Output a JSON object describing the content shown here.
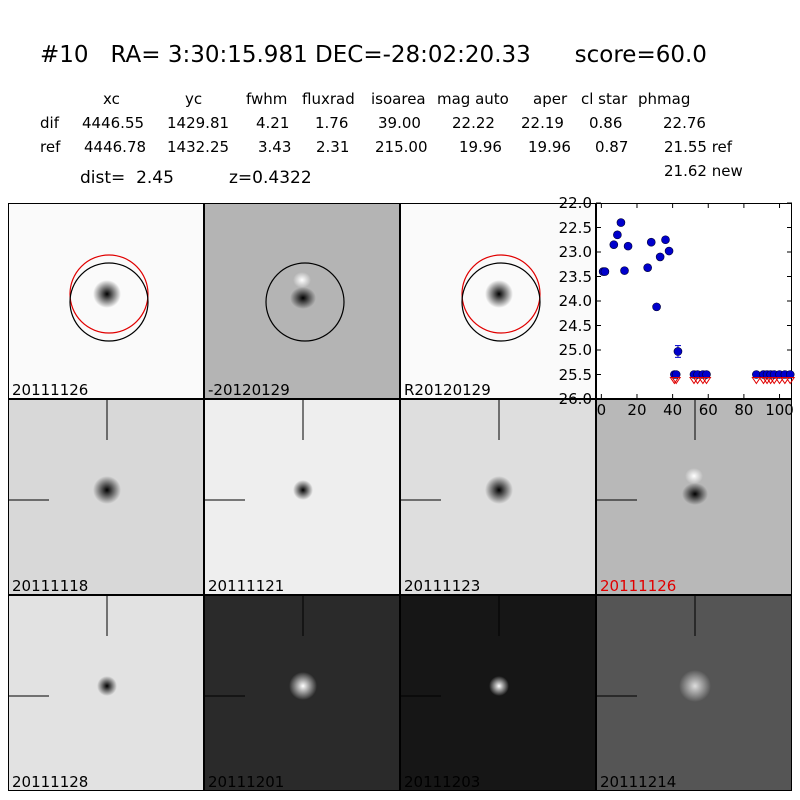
{
  "title": "#10   RA= 3:30:15.981 DEC=-28:02:20.33      score=60.0",
  "table": {
    "headers": [
      "xc",
      "yc",
      "fwhm",
      "fluxrad",
      "isoarea",
      "mag auto",
      "aper",
      "cl star",
      "phmag"
    ],
    "rows": [
      {
        "name": "dif",
        "values": [
          "4446.55",
          "1429.81",
          "4.21",
          "1.76",
          "39.00",
          "22.22",
          "22.19",
          "0.86",
          "22.76"
        ]
      },
      {
        "name": "ref",
        "values": [
          "4446.78",
          "1432.25",
          "3.43",
          "2.31",
          "215.00",
          "19.96",
          "19.96",
          "0.87",
          "21.55 ref"
        ]
      }
    ],
    "extra": "21.62 new"
  },
  "dist_text": "dist=  2.45",
  "z_text": "z=0.4322",
  "panels": [
    {
      "label": "20111126",
      "bg": "#fafafa",
      "spot": "dark",
      "circles": [
        "red",
        "black"
      ]
    },
    {
      "label": "-20120129",
      "bg": "#b4b4b4",
      "spot": "dipole",
      "circles": [
        "black"
      ]
    },
    {
      "label": "R20120129",
      "bg": "#fafafa",
      "spot": "dark",
      "circles": [
        "red",
        "black"
      ]
    },
    {
      "label": "20111118",
      "bg": "#d8d8d8",
      "spot": "dark",
      "cross": true
    },
    {
      "label": "20111121",
      "bg": "#eeeeee",
      "spot": "dark-small",
      "cross": true
    },
    {
      "label": "20111123",
      "bg": "#dedede",
      "spot": "dark",
      "cross": true
    },
    {
      "label": "20111126",
      "bg": "#b8b8b8",
      "spot": "dipole",
      "cross": true,
      "red_label": true
    },
    {
      "label": "20111128",
      "bg": "#e2e2e2",
      "spot": "dark-small",
      "cross": true
    },
    {
      "label": "20111201",
      "bg": "#2a2a2a",
      "spot": "bright",
      "cross": true
    },
    {
      "label": "20111203",
      "bg": "#161616",
      "spot": "bright-small",
      "cross": true
    },
    {
      "label": "20111214",
      "bg": "#555555",
      "spot": "bright-dim",
      "cross": true
    }
  ],
  "chart_data": {
    "type": "scatter",
    "title": "",
    "xlabel": "",
    "ylabel": "",
    "xlim": [
      -3,
      107
    ],
    "ylim": [
      26.0,
      22.0
    ],
    "y_inverted": true,
    "xticks": [
      "0",
      "20",
      "40",
      "60",
      "80",
      "100"
    ],
    "yticks": [
      "22.0",
      "22.5",
      "23.0",
      "23.5",
      "24.0",
      "24.5",
      "25.0",
      "25.5",
      "26.0"
    ],
    "color": "#0000cc",
    "points": [
      {
        "x": 1,
        "y": 23.4
      },
      {
        "x": 2,
        "y": 23.4
      },
      {
        "x": 7,
        "y": 22.85
      },
      {
        "x": 9,
        "y": 22.65
      },
      {
        "x": 11,
        "y": 22.4
      },
      {
        "x": 13,
        "y": 23.38
      },
      {
        "x": 15,
        "y": 22.88
      },
      {
        "x": 26,
        "y": 23.32
      },
      {
        "x": 28,
        "y": 22.8
      },
      {
        "x": 31,
        "y": 24.12
      },
      {
        "x": 33,
        "y": 23.1
      },
      {
        "x": 36,
        "y": 22.75
      },
      {
        "x": 38,
        "y": 22.98
      },
      {
        "x": 43,
        "y": 25.03,
        "err": 0.12
      }
    ],
    "upper_limits": [
      {
        "x": 41,
        "y": 25.5
      },
      {
        "x": 42,
        "y": 25.5
      },
      {
        "x": 52,
        "y": 25.5
      },
      {
        "x": 54,
        "y": 25.5
      },
      {
        "x": 57,
        "y": 25.5
      },
      {
        "x": 59,
        "y": 25.5
      },
      {
        "x": 87,
        "y": 25.5
      },
      {
        "x": 91,
        "y": 25.5
      },
      {
        "x": 93,
        "y": 25.5
      },
      {
        "x": 95,
        "y": 25.5
      },
      {
        "x": 97,
        "y": 25.5
      },
      {
        "x": 100,
        "y": 25.5
      },
      {
        "x": 103,
        "y": 25.5
      },
      {
        "x": 106,
        "y": 25.5
      }
    ]
  }
}
